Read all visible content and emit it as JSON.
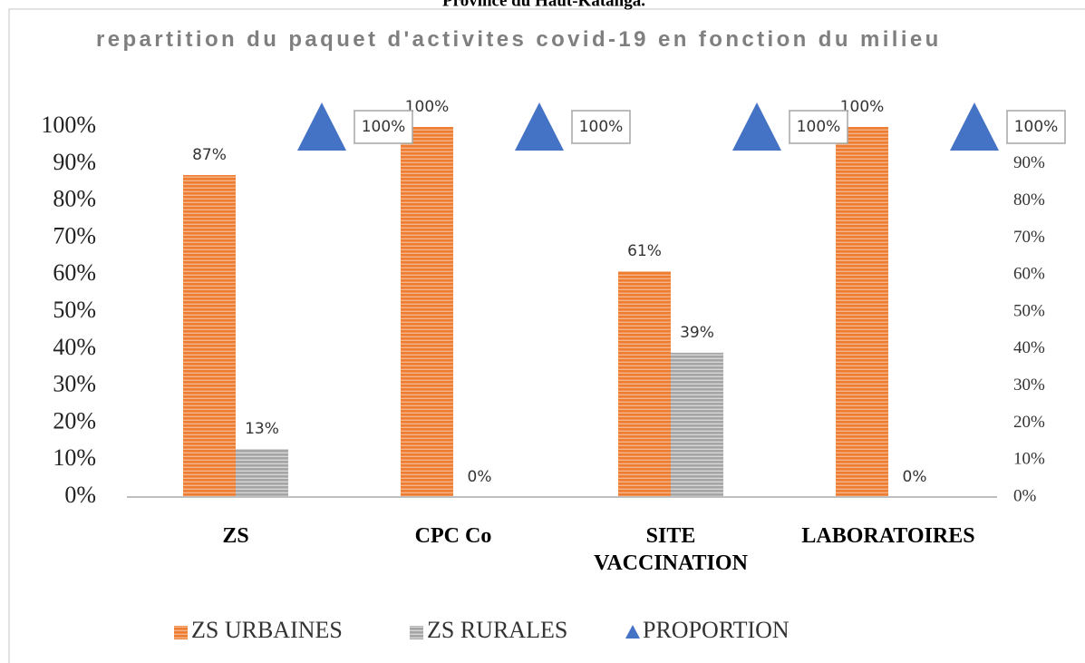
{
  "chart_data": {
    "type": "bar",
    "caption": "Province du Haut-Katanga.",
    "title": "repartition du paquet d'activites covid-19 en fonction du milieu",
    "categories": [
      "ZS",
      "CPC Co",
      "SITE VACCINATION",
      "LABORATOIRES"
    ],
    "series": [
      {
        "name": "ZS URBAINES",
        "color": "#ED7D31",
        "values": [
          87,
          100,
          61,
          100
        ],
        "value_labels": [
          "87%",
          "100%",
          "61%",
          "100%"
        ]
      },
      {
        "name": "ZS RURALES",
        "color": "#A5A5A5",
        "values": [
          13,
          0,
          39,
          0
        ],
        "value_labels": [
          "13%",
          "0%",
          "39%",
          "0%"
        ]
      },
      {
        "name": "PROPORTION",
        "type": "triangle",
        "axis": "y2",
        "color": "#4472C4",
        "values": [
          100,
          100,
          100,
          100
        ],
        "value_labels": [
          "100%",
          "100%",
          "100%",
          "100%"
        ]
      }
    ],
    "ylim": [
      0,
      100
    ],
    "yticks": [
      {
        "value": 0,
        "label": "0%"
      },
      {
        "value": 10,
        "label": "10%"
      },
      {
        "value": 20,
        "label": "20%"
      },
      {
        "value": 30,
        "label": "30%"
      },
      {
        "value": 40,
        "label": "40%"
      },
      {
        "value": 50,
        "label": "50%"
      },
      {
        "value": 60,
        "label": "60%"
      },
      {
        "value": 70,
        "label": "70%"
      },
      {
        "value": 80,
        "label": "80%"
      },
      {
        "value": 90,
        "label": "90%"
      },
      {
        "value": 100,
        "label": "100%"
      }
    ],
    "y2lim": [
      0,
      100
    ],
    "y2ticks": [
      {
        "value": 0,
        "label": "0%"
      },
      {
        "value": 10,
        "label": "10%"
      },
      {
        "value": 20,
        "label": "20%"
      },
      {
        "value": 30,
        "label": "30%"
      },
      {
        "value": 40,
        "label": "40%"
      },
      {
        "value": 50,
        "label": "50%"
      },
      {
        "value": 60,
        "label": "60%"
      },
      {
        "value": 70,
        "label": "70%"
      },
      {
        "value": 80,
        "label": "80%"
      },
      {
        "value": 90,
        "label": "90%"
      },
      {
        "value": 100,
        "label": "100%"
      }
    ],
    "grid": false,
    "legend": "bottom"
  }
}
